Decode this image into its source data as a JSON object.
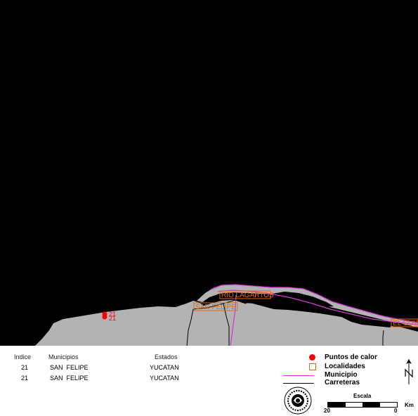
{
  "map": {
    "localities": [
      {
        "name": "RIO LAGARTOS"
      },
      {
        "name": "SAN FELIPE"
      },
      {
        "name": "EL CUYO"
      }
    ],
    "hotspots": [
      {
        "index": "21"
      },
      {
        "index": "21"
      }
    ],
    "colors": {
      "sea": "#000000",
      "land": "#b3b3b3",
      "hotspot": "#ff0000",
      "locality": "#e06a14",
      "municipio": "#d63ad6",
      "road": "#000000"
    }
  },
  "table": {
    "headers": {
      "index": "Indice",
      "municipio": "Municipios",
      "estado": "Estados"
    },
    "rows": [
      {
        "index": "21",
        "municipio": "SAN  FELIPE",
        "estado": "YUCATAN"
      },
      {
        "index": "21",
        "municipio": "SAN  FELIPE",
        "estado": "YUCATAN"
      }
    ]
  },
  "legend": {
    "hotspots": "Puntos de calor",
    "localities": "Localidades",
    "municipio": "Municipio",
    "roads": "Carreteras"
  },
  "scale": {
    "title": "Escala",
    "left": "20",
    "right": "0",
    "unit": "Km"
  },
  "north": {
    "label": "N"
  }
}
